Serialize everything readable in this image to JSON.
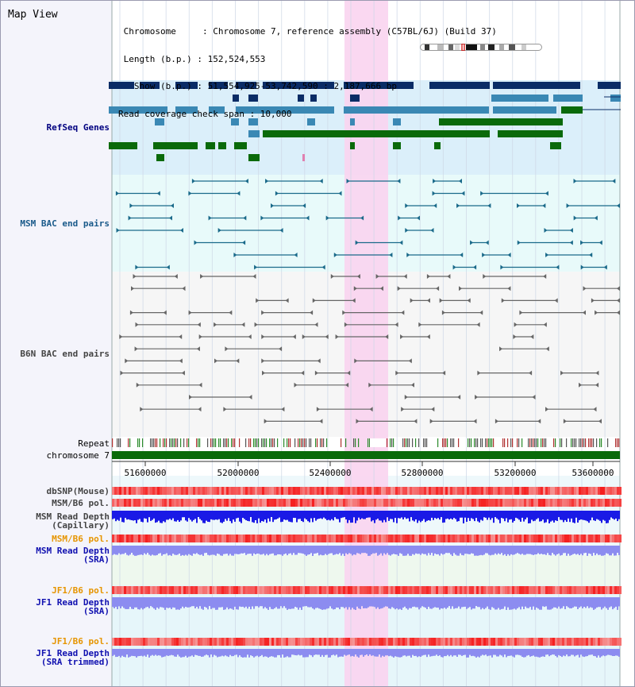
{
  "header": {
    "view_title": "Map View",
    "chromosome_line": " Chromosome     : Chromosome 7, reference assembly (C57BL/6J) (Build 37)",
    "length_line": " Length (b.p.) : 152,524,553",
    "show_line": "   Show (b.p.) : 51,554,925-53,742,590 : 2,187,666 bp",
    "coverage_line": "Read coverage check span : 10,000"
  },
  "tracks": {
    "refseq": "RefSeq Genes",
    "msm_bac": "MSM BAC end pairs",
    "b6n_bac": "B6N BAC end pairs",
    "repeat": "Repeat",
    "chromosome": "chromosome 7",
    "dbsnp": "dbSNP(Mouse)",
    "msm_b6_pol": "MSM/B6 pol.",
    "msm_depth_cap_1": "MSM Read Depth",
    "msm_depth_cap_2": "(Capillary)",
    "msm_b6_pol_2": "MSM/B6 pol.",
    "msm_depth_sra_1": "MSM Read Depth",
    "msm_depth_sra_2": "(SRA)",
    "jf1_b6_pol": "JF1/B6 pol.",
    "jf1_depth_sra_1": "JF1 Read Depth",
    "jf1_depth_sra_2": "(SRA)",
    "jf1_b6_pol_2": "JF1/B6 pol.",
    "jf1_depth_trim_1": "JF1 Read Depth",
    "jf1_depth_trim_2": "(SRA trimmed)"
  },
  "axis": {
    "ticks": [
      "51600000",
      "52000000",
      "52400000",
      "52800000",
      "53200000",
      "53600000"
    ]
  },
  "colors": {
    "refseq_dark": "#0a2c66",
    "refseq_mid": "#3a88b4",
    "refseq_green": "#0a6a0a",
    "highlight": "#f9d4f0",
    "msm_line": "#1a6a8a",
    "b6n_line": "#666666",
    "chromosome_bar": "#0a6a0a",
    "snp_red": "#f04040",
    "depth_blue": "#1a1ae6",
    "depth_light": "#8c8cf0"
  }
}
